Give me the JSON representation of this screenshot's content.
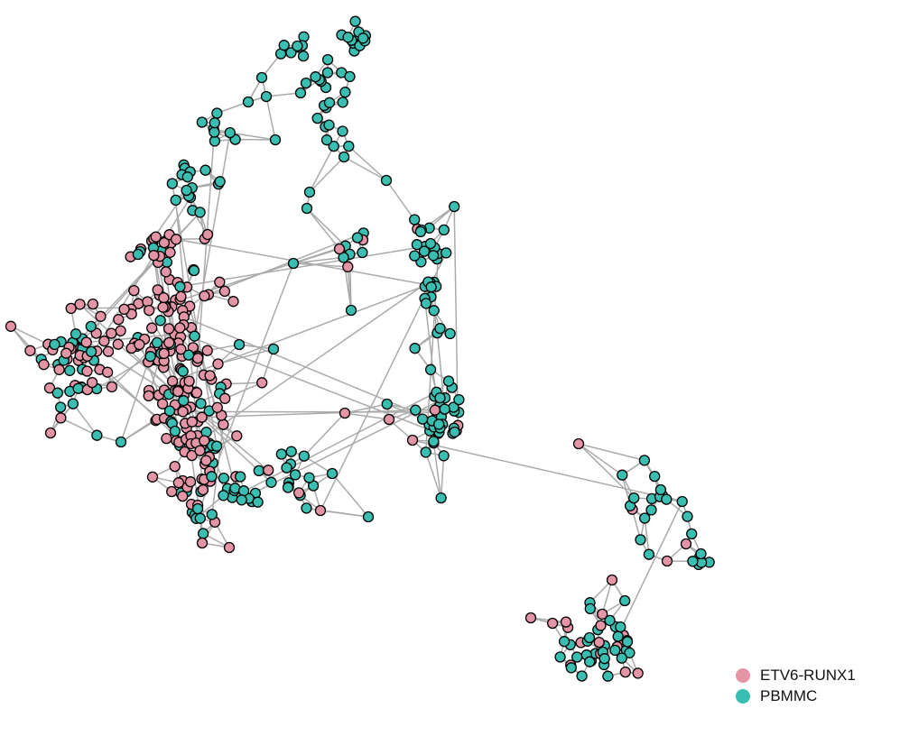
{
  "colors": {
    "ETV6-RUNX1": "#E495A5",
    "PBMMC": "#39BEB1",
    "edge": "#AAAAAA",
    "outline": "#000000"
  },
  "legend": {
    "items": [
      {
        "label": "ETV6-RUNX1",
        "color": "#E495A5"
      },
      {
        "label": "PBMMC",
        "color": "#39BEB1"
      }
    ]
  },
  "graph": {
    "type": "network",
    "groups": [
      "ETV6-RUNX1",
      "PBMMC"
    ]
  }
}
